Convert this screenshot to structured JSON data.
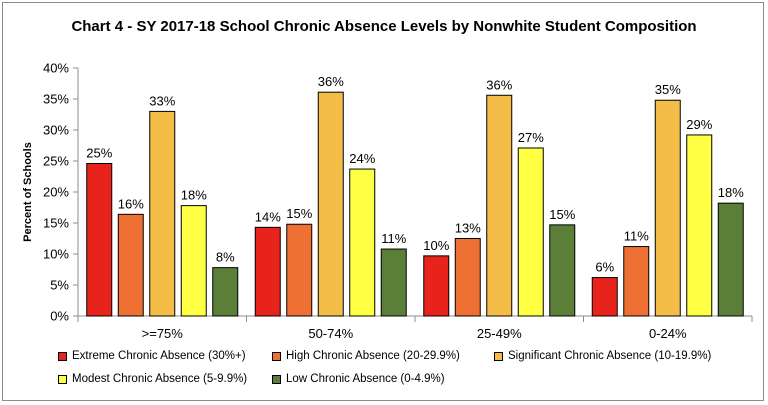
{
  "chart_data": {
    "type": "bar",
    "title": "Chart 4 - SY 2017-18 School Chronic Absence Levels by Nonwhite Student Composition",
    "ylabel": "Percent of Schools",
    "xlabel": "",
    "ylim": [
      0,
      40
    ],
    "yticks": [
      "0%",
      "5%",
      "10%",
      "15%",
      "20%",
      "25%",
      "30%",
      "35%",
      "40%"
    ],
    "grid": false,
    "legend_position": "bottom",
    "categories": [
      ">=75%",
      "50-74%",
      "25-49%",
      "0-24%"
    ],
    "series": [
      {
        "name": "Extreme Chronic Absence (30%+)",
        "color": "#e8231c",
        "values": [
          24.6,
          14.3,
          9.7,
          6.2
        ],
        "labels": [
          "25%",
          "14%",
          "10%",
          "6%"
        ]
      },
      {
        "name": "High Chronic Absence (20-29.9%)",
        "color": "#ee7032",
        "values": [
          16.4,
          14.8,
          12.5,
          11.2
        ],
        "labels": [
          "16%",
          "15%",
          "13%",
          "11%"
        ]
      },
      {
        "name": "Significant Chronic Absence (10-19.9%)",
        "color": "#f3bd47",
        "values": [
          33.0,
          36.1,
          35.6,
          34.8
        ],
        "labels": [
          "33%",
          "36%",
          "36%",
          "35%"
        ]
      },
      {
        "name": "Modest Chronic Absence (5-9.9%)",
        "color": "#ffff44",
        "values": [
          17.8,
          23.7,
          27.1,
          29.2
        ],
        "labels": [
          "18%",
          "24%",
          "27%",
          "29%"
        ]
      },
      {
        "name": "Low Chronic Absence (0-4.9%)",
        "color": "#5b7f38",
        "values": [
          7.8,
          10.8,
          14.7,
          18.2
        ],
        "labels": [
          "8%",
          "11%",
          "15%",
          "18%"
        ]
      }
    ]
  }
}
